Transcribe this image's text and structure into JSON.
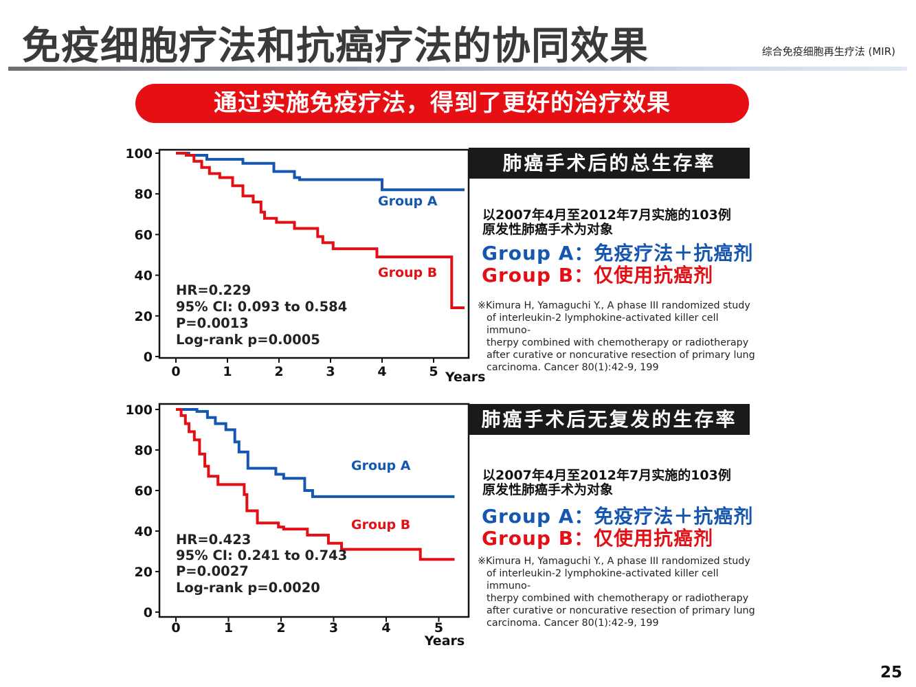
{
  "slide": {
    "title": "免疫细胞疗法和抗癌疗法的协同效果",
    "subtitle": "综合免疫细胞再生疗法 (MIR)",
    "banner": "通过实施免疫疗法，得到了更好的治疗效果",
    "page_number": "25"
  },
  "colors": {
    "group_a": "#1557b0",
    "group_b": "#e30f14",
    "banner": "#e60f14"
  },
  "panels": [
    {
      "heading": "肺癌手术后的总生存率",
      "cohort_line1": "以2007年4月至2012年7月实施的103例",
      "cohort_line2": "原发性肺癌手术为对象",
      "group_a": "Group A：免疫疗法＋抗癌剂",
      "group_b": "Group B：仅使用抗癌剂",
      "reference": "※Kimura H, Yamaguchi Y., A phase III randomized study\nof interleukin-2 lymphokine-activated killer cell immuno-\ntherpy combined with chemotherapy or radiotherapy\nafter curative or noncurative resection of primary lung\ncarcinoma. Cancer 80(1):42-9, 199"
    },
    {
      "heading": "肺癌手术后无复发的生存率",
      "cohort_line1": "以2007年4月至2012年7月实施的103例",
      "cohort_line2": "原发性肺癌手术为对象",
      "group_a": "Group A：免疫疗法＋抗癌剂",
      "group_b": "Group B：仅使用抗癌剂",
      "reference": "※Kimura H, Yamaguchi Y., A phase III randomized study\nof interleukin-2 lymphokine-activated killer cell immuno-\ntherpy combined with chemotherapy or radiotherapy\nafter curative or noncurative resection of primary lung\ncarcinoma. Cancer 80(1):42-9, 199"
    }
  ],
  "chart_data": [
    {
      "type": "line",
      "step": true,
      "xlabel": "Years",
      "ylabel": "",
      "xlim": [
        0,
        5.5
      ],
      "ylim": [
        0,
        100
      ],
      "x_ticks": [
        "0",
        "1",
        "2",
        "3",
        "4",
        "5"
      ],
      "y_ticks": [
        "100",
        "80",
        "60",
        "40",
        "20",
        "0"
      ],
      "grid": false,
      "series": [
        {
          "name": "Group A",
          "points": [
            [
              0,
              100
            ],
            [
              0.25,
              100
            ],
            [
              0.25,
              99
            ],
            [
              0.6,
              99
            ],
            [
              0.6,
              97
            ],
            [
              1.3,
              97
            ],
            [
              1.3,
              95
            ],
            [
              1.9,
              95
            ],
            [
              1.9,
              91
            ],
            [
              2.3,
              91
            ],
            [
              2.3,
              88
            ],
            [
              2.4,
              88
            ],
            [
              2.4,
              87
            ],
            [
              4,
              87
            ],
            [
              4,
              82
            ],
            [
              5.6,
              82
            ]
          ]
        },
        {
          "name": "Group B",
          "points": [
            [
              0,
              100
            ],
            [
              0.2,
              100
            ],
            [
              0.2,
              99
            ],
            [
              0.35,
              99
            ],
            [
              0.35,
              96
            ],
            [
              0.5,
              96
            ],
            [
              0.5,
              93
            ],
            [
              0.65,
              93
            ],
            [
              0.65,
              90
            ],
            [
              0.85,
              90
            ],
            [
              0.85,
              88
            ],
            [
              1.1,
              88
            ],
            [
              1.1,
              84
            ],
            [
              1.3,
              84
            ],
            [
              1.3,
              79
            ],
            [
              1.5,
              79
            ],
            [
              1.5,
              76
            ],
            [
              1.65,
              76
            ],
            [
              1.65,
              71
            ],
            [
              1.72,
              71
            ],
            [
              1.72,
              68
            ],
            [
              1.95,
              68
            ],
            [
              1.95,
              66
            ],
            [
              2.3,
              66
            ],
            [
              2.3,
              63
            ],
            [
              2.75,
              63
            ],
            [
              2.75,
              59
            ],
            [
              2.85,
              59
            ],
            [
              2.85,
              56
            ],
            [
              3.05,
              56
            ],
            [
              3.05,
              53
            ],
            [
              3.9,
              53
            ],
            [
              3.9,
              49
            ],
            [
              5.35,
              49
            ],
            [
              5.35,
              24
            ],
            [
              5.6,
              24
            ]
          ]
        }
      ],
      "annotations": [
        "HR=0.229",
        "95% CI: 0.093 to 0.584",
        "P=0.0013",
        "Log-rank p=0.0005"
      ]
    },
    {
      "type": "line",
      "step": true,
      "xlabel": "Years",
      "ylabel": "",
      "xlim": [
        0,
        5.5
      ],
      "ylim": [
        0,
        100
      ],
      "x_ticks": [
        "0",
        "1",
        "2",
        "3",
        "4",
        "5"
      ],
      "y_ticks": [
        "100",
        "80",
        "60",
        "40",
        "20",
        "0"
      ],
      "grid": false,
      "series": [
        {
          "name": "Group A",
          "points": [
            [
              0,
              100
            ],
            [
              0.4,
              100
            ],
            [
              0.4,
              99
            ],
            [
              0.6,
              99
            ],
            [
              0.6,
              96
            ],
            [
              0.75,
              96
            ],
            [
              0.75,
              93
            ],
            [
              0.95,
              93
            ],
            [
              0.95,
              90
            ],
            [
              1.12,
              90
            ],
            [
              1.12,
              84
            ],
            [
              1.2,
              84
            ],
            [
              1.2,
              79
            ],
            [
              1.37,
              79
            ],
            [
              1.37,
              71
            ],
            [
              1.9,
              71
            ],
            [
              1.9,
              68
            ],
            [
              2.05,
              68
            ],
            [
              2.05,
              66
            ],
            [
              2.45,
              66
            ],
            [
              2.45,
              60
            ],
            [
              2.6,
              60
            ],
            [
              2.6,
              57
            ],
            [
              5.3,
              57
            ]
          ]
        },
        {
          "name": "Group B",
          "points": [
            [
              0,
              100
            ],
            [
              0.1,
              100
            ],
            [
              0.1,
              97
            ],
            [
              0.18,
              97
            ],
            [
              0.18,
              93
            ],
            [
              0.25,
              93
            ],
            [
              0.25,
              89
            ],
            [
              0.35,
              89
            ],
            [
              0.35,
              85
            ],
            [
              0.45,
              85
            ],
            [
              0.45,
              78
            ],
            [
              0.55,
              78
            ],
            [
              0.55,
              72
            ],
            [
              0.62,
              72
            ],
            [
              0.62,
              67
            ],
            [
              0.8,
              67
            ],
            [
              0.8,
              63
            ],
            [
              1.3,
              63
            ],
            [
              1.3,
              58
            ],
            [
              1.35,
              58
            ],
            [
              1.35,
              50
            ],
            [
              1.55,
              50
            ],
            [
              1.55,
              44
            ],
            [
              1.95,
              44
            ],
            [
              1.95,
              42
            ],
            [
              2.05,
              42
            ],
            [
              2.05,
              41
            ],
            [
              2.5,
              41
            ],
            [
              2.5,
              38
            ],
            [
              2.9,
              38
            ],
            [
              2.9,
              34
            ],
            [
              3.15,
              34
            ],
            [
              3.15,
              31
            ],
            [
              4.65,
              31
            ],
            [
              4.65,
              26
            ],
            [
              5.3,
              26
            ]
          ]
        }
      ],
      "annotations": [
        "HR=0.423",
        "95% CI: 0.241 to 0.743",
        "P=0.0027",
        "Log-rank p=0.0020"
      ]
    }
  ]
}
